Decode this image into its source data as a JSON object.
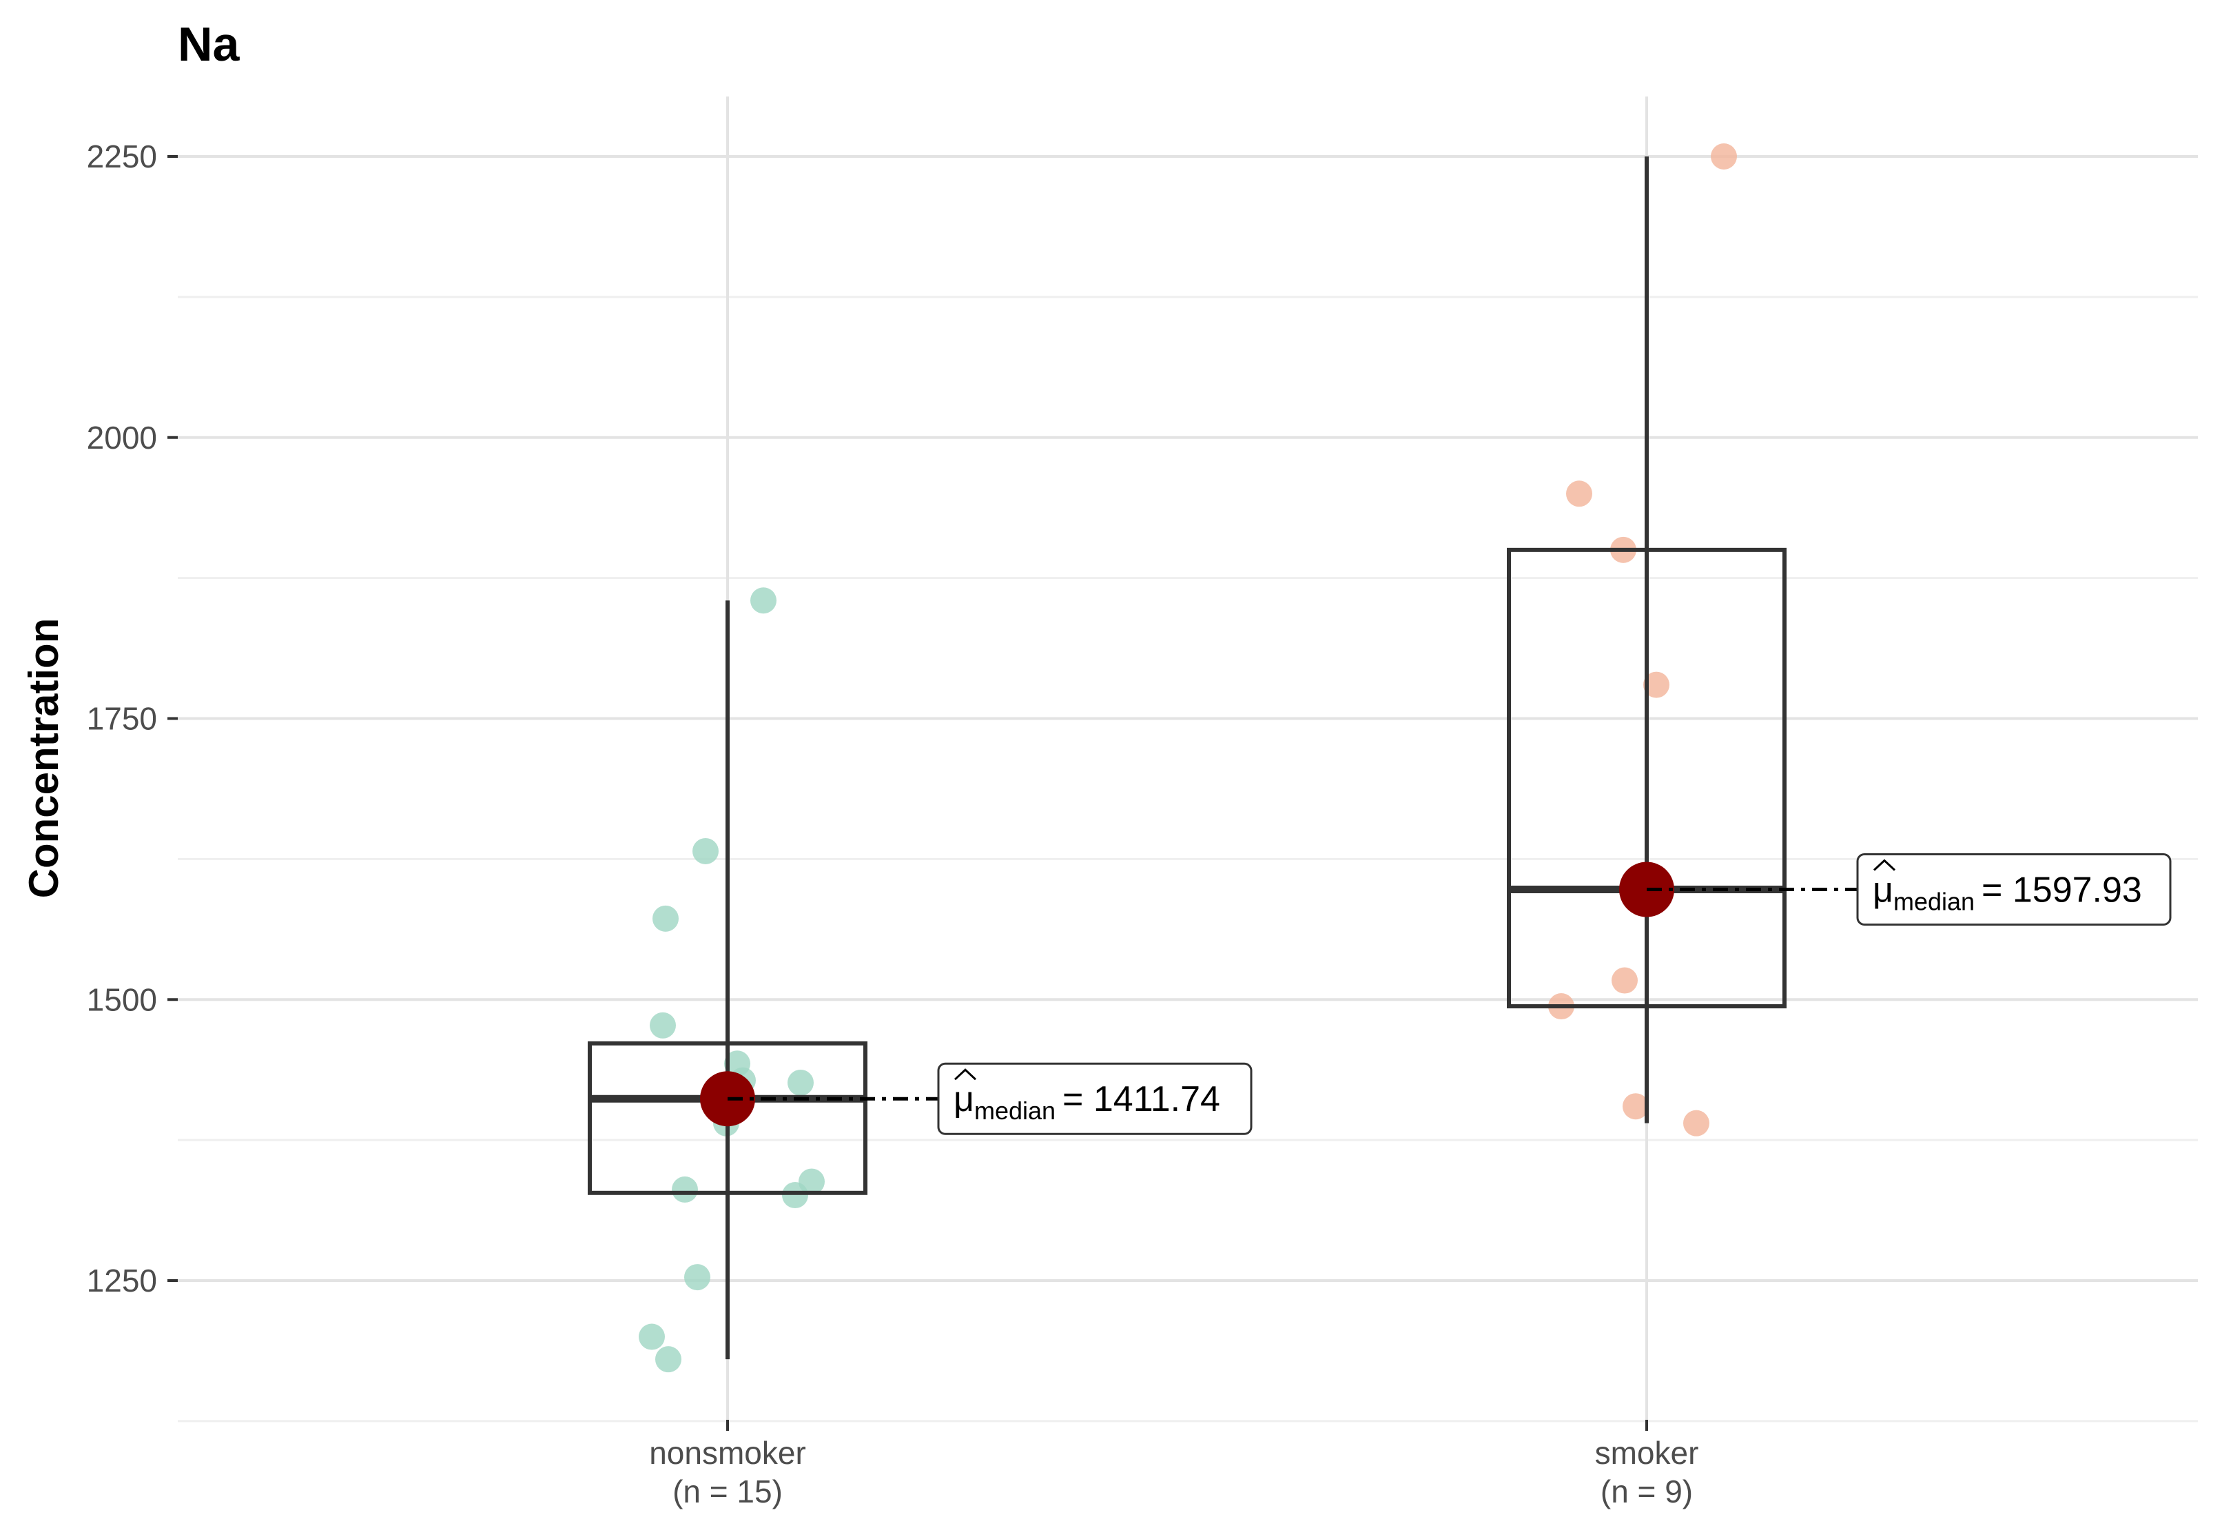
{
  "chart_data": {
    "type": "box",
    "title": "Na",
    "xlabel": "",
    "ylabel": "Concentration",
    "ylim": [
      1130,
      2300
    ],
    "y_ticks": [
      1250,
      1500,
      1750,
      2000,
      2250
    ],
    "grid": true,
    "groups": [
      {
        "name": "nonsmoker",
        "n_label": "(n = 15)",
        "color": "#9fd6c3",
        "points": [
          1855,
          1632,
          1572,
          1477,
          1443,
          1428,
          1426,
          1390,
          1338,
          1331,
          1326,
          1253,
          1200,
          1180,
          1412
        ],
        "box": {
          "q1": 1328,
          "median": 1411.74,
          "q3": 1461,
          "whisker_low": 1180,
          "whisker_high": 1855
        },
        "median_label": {
          "symbol": "μ",
          "subscript": "median",
          "text": "= 1411.74"
        }
      },
      {
        "name": "smoker",
        "n_label": "(n = 9)",
        "color": "#f2b49a",
        "points": [
          2250,
          1950,
          1900,
          1780,
          1597.93,
          1517,
          1494,
          1405,
          1390
        ],
        "box": {
          "q1": 1494,
          "median": 1597.93,
          "q3": 1900,
          "whisker_low": 1390,
          "whisker_high": 2250
        },
        "median_label": {
          "symbol": "μ",
          "subscript": "median",
          "text": "= 1597.93"
        }
      }
    ],
    "median_marker_color": "#8b0000",
    "box_color": "#333333"
  }
}
